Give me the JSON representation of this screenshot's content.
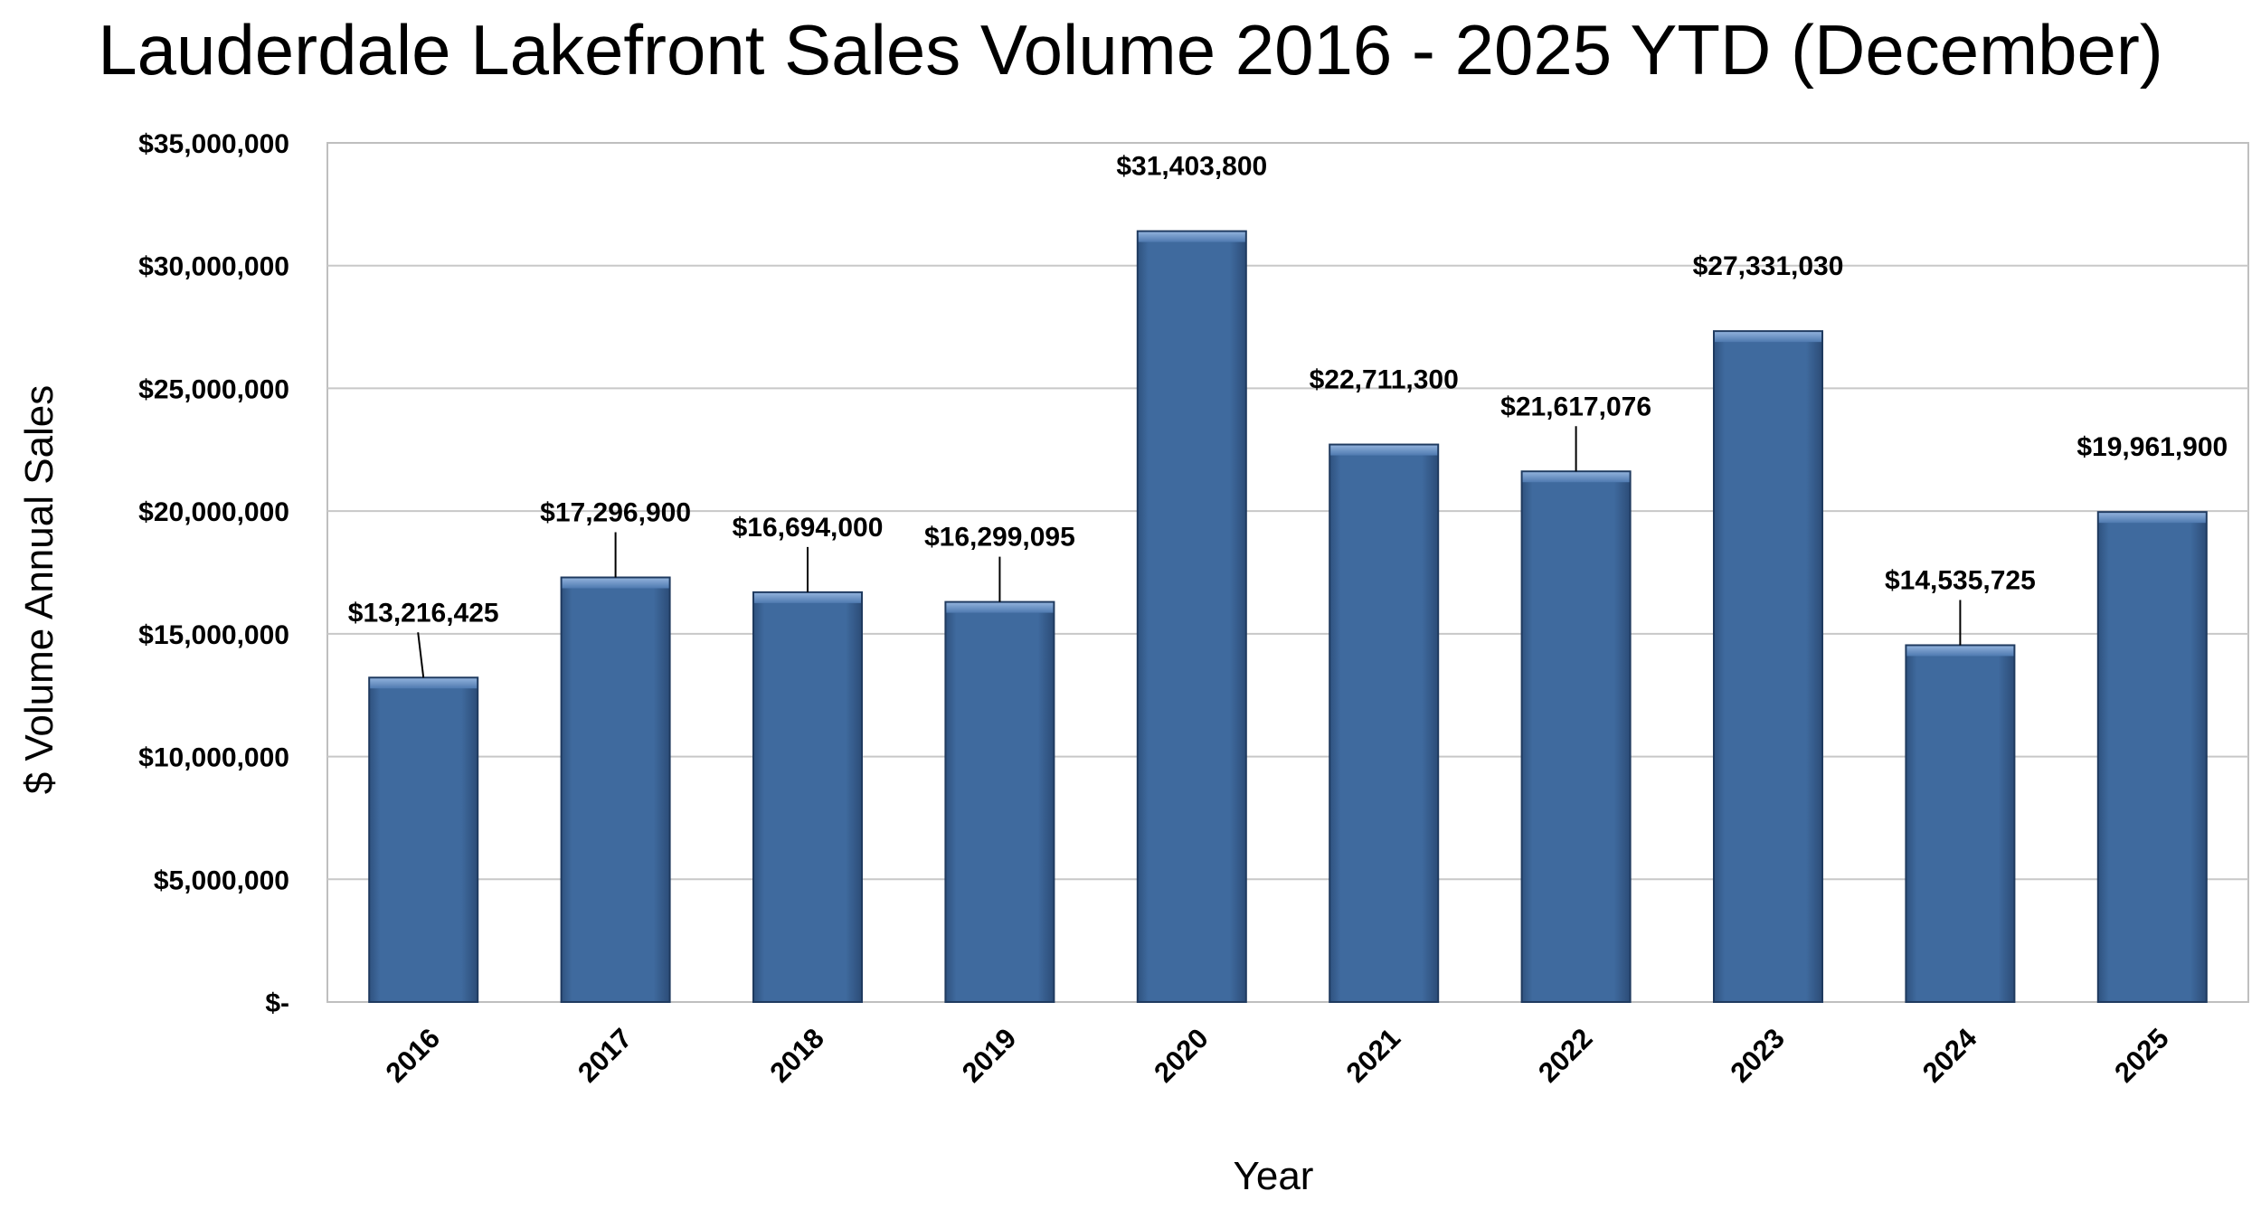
{
  "chart_data": {
    "type": "bar",
    "title": "Lauderdale Lakefront Sales Volume 2016 - 2025 YTD (December)",
    "xlabel": "Year",
    "ylabel": "$ Volume Annual Sales",
    "categories": [
      "2016",
      "2017",
      "2018",
      "2019",
      "2020",
      "2021",
      "2022",
      "2023",
      "2024",
      "2025"
    ],
    "values": [
      13216425,
      17296900,
      16694000,
      16299095,
      31403800,
      22711300,
      21617076,
      27331030,
      14535725,
      19961900
    ],
    "data_labels": [
      "$13,216,425",
      "$17,296,900",
      "$16,694,000",
      "$16,299,095",
      "$31,403,800",
      "$22,711,300",
      "$21,617,076",
      "$27,331,030",
      "$14,535,725",
      "$19,961,900"
    ],
    "ylim": [
      0,
      35000000
    ],
    "yticks": [
      0,
      5000000,
      10000000,
      15000000,
      20000000,
      25000000,
      30000000,
      35000000
    ],
    "ytick_labels": [
      "$-",
      "$5,000,000",
      "$10,000,000",
      "$15,000,000",
      "$20,000,000",
      "$25,000,000",
      "$30,000,000",
      "$35,000,000"
    ],
    "grid": true,
    "legend": "none",
    "colors": {
      "bar_fill": "#3F6A9E",
      "bar_edge": "#1F3A5F",
      "bar_highlight": "#7FA3D1",
      "grid": "#C8C8C8",
      "plot_border": "#BFBFBF"
    }
  }
}
